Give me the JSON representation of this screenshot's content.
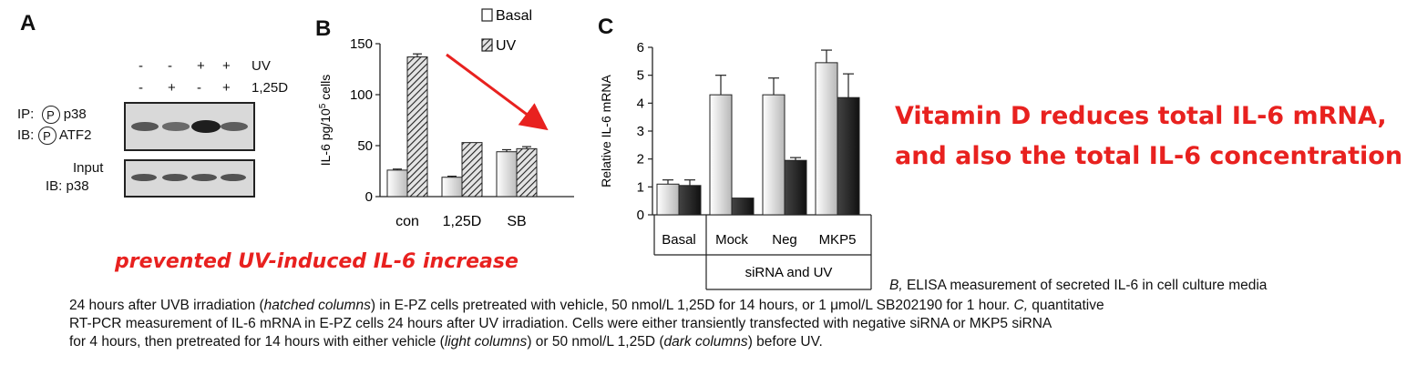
{
  "panelA": {
    "letter": "A",
    "uv_row": [
      "-",
      "-",
      "+",
      "+"
    ],
    "uv_label": "UV",
    "d_row": [
      "-",
      "+",
      "-",
      "+"
    ],
    "d_label": "1,25D",
    "ip_label": "IP:",
    "ip_target": "p38",
    "ib_label": "IB:",
    "ib_target": "ATF2",
    "p_symbol": "P",
    "input_label": "Input",
    "input_ib": "IB: p38",
    "phospho_band_intensity": [
      0.55,
      0.4,
      1.0,
      0.5
    ],
    "input_band_intensity": [
      0.7,
      0.7,
      0.7,
      0.7
    ]
  },
  "chart_data": [
    {
      "type": "bar",
      "letter": "B",
      "categories": [
        "con",
        "1,25D",
        "SB"
      ],
      "series": [
        {
          "name": "Basal",
          "values": [
            26,
            19,
            44
          ],
          "errors": [
            1,
            1,
            2
          ]
        },
        {
          "name": "UV",
          "values": [
            137,
            53,
            47
          ],
          "errors": [
            3,
            0,
            2
          ]
        }
      ],
      "ylabel_pre": "IL-6 pg/10",
      "ylabel_sup": "5",
      "ylabel_post": " cells",
      "ylim": [
        0,
        150
      ],
      "yticks": [
        0,
        50,
        100,
        150
      ],
      "legend_position": "top-right",
      "grid": false
    },
    {
      "type": "bar",
      "letter": "C",
      "categories": [
        "Basal",
        "Mock",
        "Neg",
        "MKP5"
      ],
      "series": [
        {
          "name": "vehicle",
          "values": [
            1.1,
            4.3,
            4.3,
            5.45
          ],
          "errors": [
            0.15,
            0.7,
            0.6,
            0.45
          ]
        },
        {
          "name": "1,25D",
          "values": [
            1.05,
            0.6,
            1.95,
            4.2
          ],
          "errors": [
            0.2,
            0.0,
            0.1,
            0.85
          ]
        }
      ],
      "ylabel": "Relative IL-6 mRNA",
      "ylim": [
        0,
        6
      ],
      "yticks": [
        0,
        1,
        2,
        3,
        4,
        5,
        6
      ],
      "group_label": "siRNA and UV",
      "grid": false
    }
  ],
  "annotations": {
    "headline_line1": "Vitamin D reduces total  IL-6 mRNA,",
    "headline_line2": "and also the total IL-6 concentration",
    "prevented": "prevented UV-induced IL-6 increase"
  },
  "caption": {
    "l1_b": "B,",
    "l1": " ELISA measurement of secreted IL-6 in cell culture media",
    "l2_a": "24 hours after UVB irradiation (",
    "l2_hatched": "hatched columns",
    "l2_b": ") in E-PZ cells pretreated with vehicle, 50 nmol/L 1,25D for 14 hours, or 1 μmol/L SB202190 for 1 hour. ",
    "l2_c": "C,",
    "l2_d": " quantitative",
    "l3": "RT-PCR measurement of IL-6 mRNA in E-PZ cells 24 hours after UV irradiation. Cells were either transiently transfected with negative siRNA or MKP5 siRNA",
    "l4_a": "for 4 hours, then pretreated for 14 hours with either vehicle (",
    "l4_light": "light columns",
    "l4_b": ") or 50 nmol/L 1,25D (",
    "l4_dark": "dark columns",
    "l4_c": ") before UV."
  },
  "colors": {
    "red": "#e8211f",
    "dark_bar": "#222222",
    "light_bar": "#e6e6e6"
  }
}
